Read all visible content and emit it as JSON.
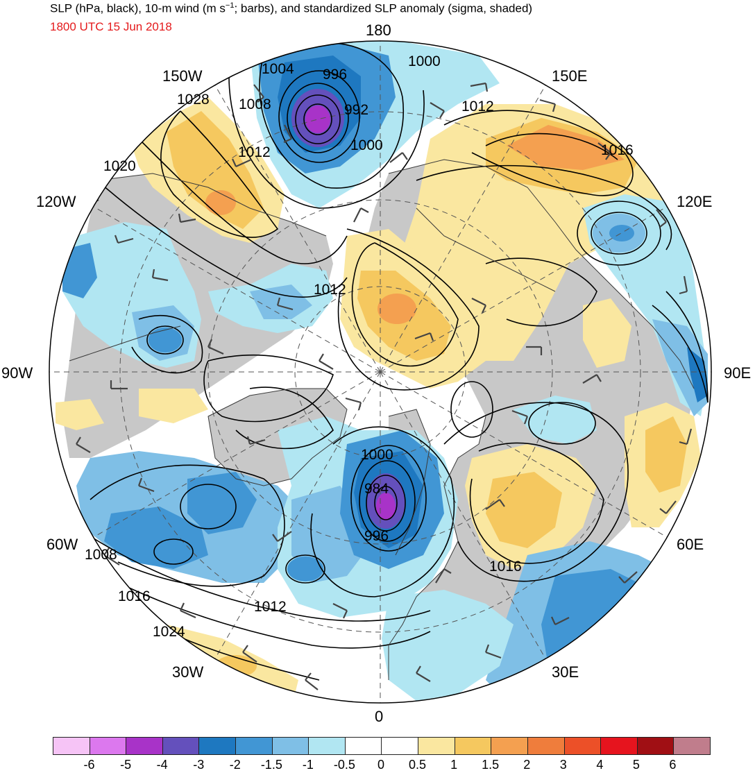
{
  "header": {
    "title_main": "SLP (hPa, black), 10-m wind (m s",
    "title_sup": "−1",
    "title_rest": "; barbs), and standardized SLP anomaly (sigma, shaded)",
    "date": "1800 UTC 15 Jun 2018"
  },
  "map": {
    "longitude_labels": {
      "deg180": "180",
      "e150": "150E",
      "e120": "120E",
      "e90": "90E",
      "e60": "60E",
      "e30": "30E",
      "deg0": "0",
      "w30": "30W",
      "w60": "60W",
      "w90": "90W",
      "w120": "120W",
      "w150": "150W"
    },
    "isobar_labels": {
      "l1004": "1004",
      "l996a": "996",
      "l992": "992",
      "l1000a": "1000",
      "l1008a": "1008",
      "l1012a": "1012",
      "l1028": "1028",
      "l1020": "1020",
      "l1000b": "1000",
      "l1012b": "1012",
      "l1016a": "1016",
      "l1012c": "1012",
      "l1000c": "1000",
      "l984": "984",
      "l996b": "996",
      "l1016b": "1016",
      "l1008b": "1008",
      "l1016c": "1016",
      "l1012d": "1012",
      "l1024": "1024"
    }
  },
  "colorbar": {
    "colors": [
      "#f6c4f6",
      "#dc78ee",
      "#a833c8",
      "#6450bc",
      "#1e78c0",
      "#4196d4",
      "#7fbfe6",
      "#b1e6f2",
      "#ffffff",
      "#ffffff",
      "#fae7a0",
      "#f5c85f",
      "#f4a050",
      "#ef7d3c",
      "#ec5028",
      "#e6141e",
      "#a00f14",
      "#c07d8c"
    ],
    "ticks": [
      "-6",
      "-5",
      "-4",
      "-3",
      "-2",
      "-1.5",
      "-1",
      "-0.5",
      "0",
      "0.5",
      "1",
      "1.5",
      "2",
      "3",
      "4",
      "5",
      "6"
    ]
  }
}
